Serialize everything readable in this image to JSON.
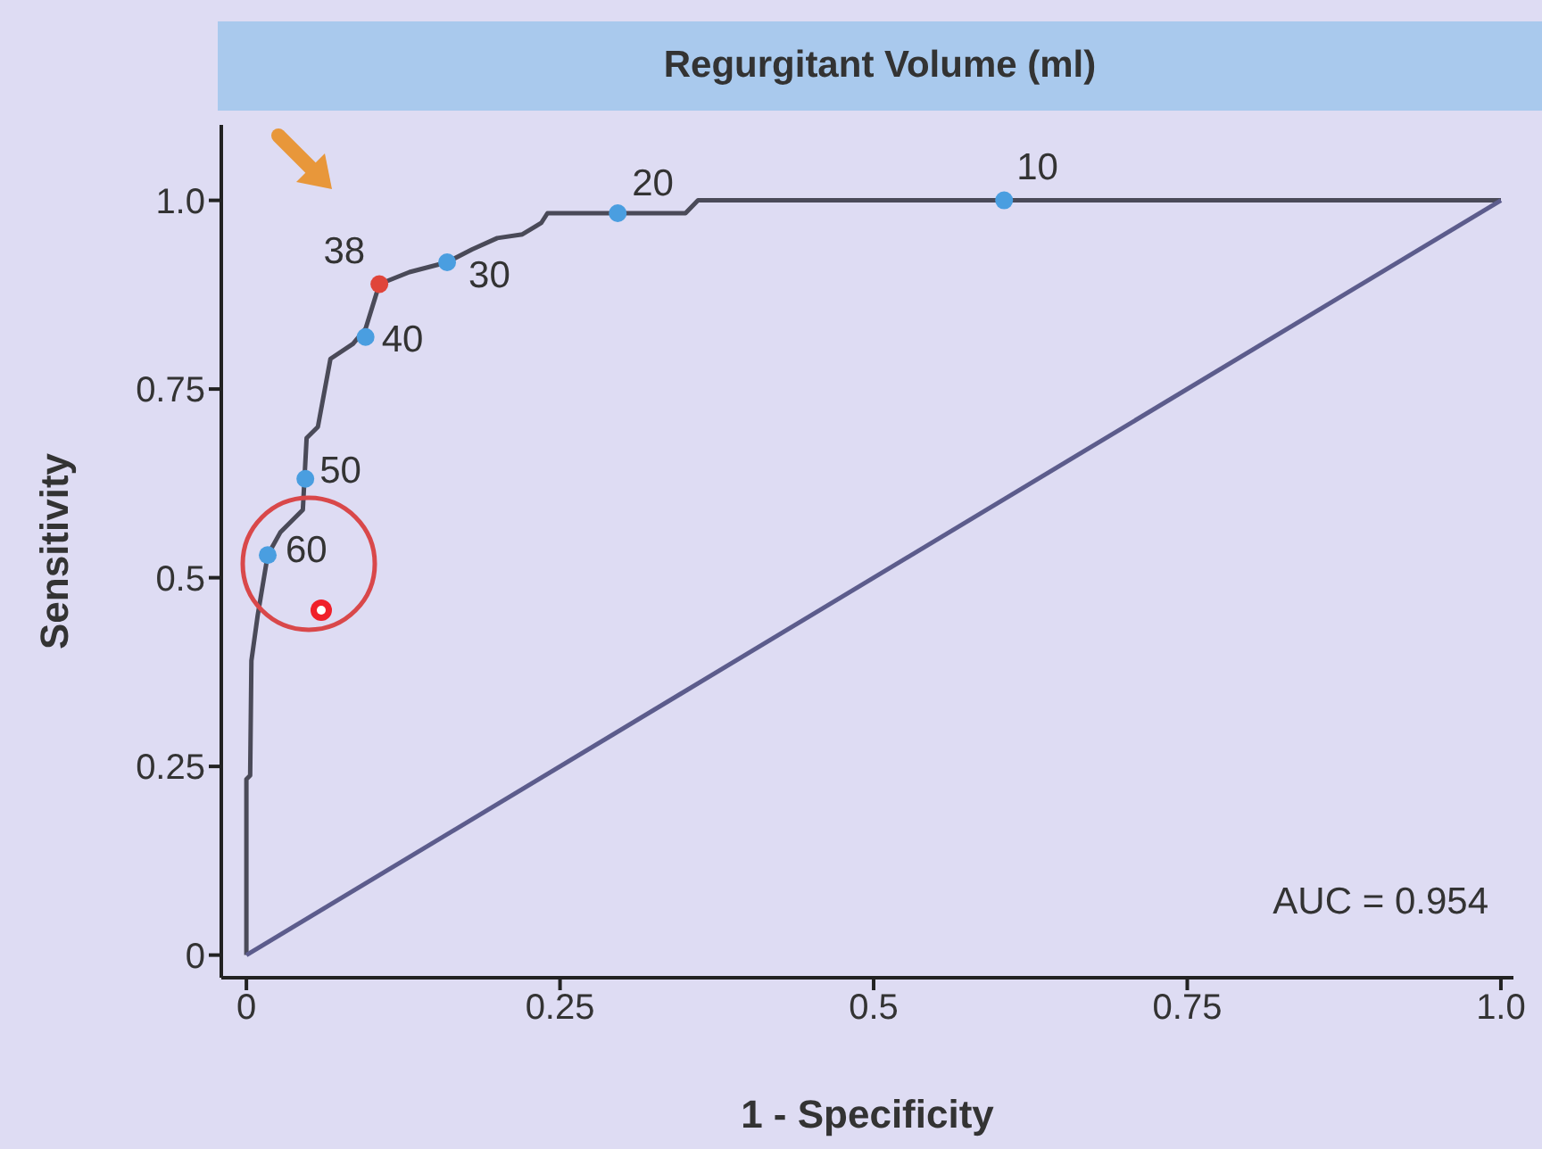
{
  "chart_data": {
    "type": "line",
    "title": "Regurgitant Volume (ml)",
    "xlabel": "1 - Specificity",
    "ylabel": "Sensitivity",
    "annotations": [
      "AUC = 0.954",
      {
        "text": "60",
        "x": 0.017,
        "y": 0.53
      },
      {
        "text": "50",
        "x": 0.047,
        "y": 0.631
      },
      {
        "text": "40",
        "x": 0.095,
        "y": 0.819
      },
      {
        "text": "38",
        "x": 0.106,
        "y": 0.889
      },
      {
        "text": "30",
        "x": 0.16,
        "y": 0.918
      },
      {
        "text": "20",
        "x": 0.296,
        "y": 0.983
      },
      {
        "text": "10",
        "x": 0.604,
        "y": 1.0
      }
    ],
    "xlim": [
      -0.02,
      1.01
    ],
    "ylim": [
      -0.03,
      1.1
    ],
    "xticks": [
      0,
      0.25,
      0.5,
      0.75,
      {
        "value": 1,
        "label": "1.0"
      }
    ],
    "yticks": [
      0,
      0.25,
      0.5,
      0.75,
      {
        "value": 1,
        "label": "1.0"
      }
    ],
    "grid": false,
    "legend": false,
    "line_style": "solid",
    "series": [
      {
        "color": "#4a4a58",
        "marker": "none",
        "x": [
          0,
          0,
          0.003,
          0.004,
          0.009,
          0.017,
          0.027,
          0.045,
          0.048,
          0.057,
          0.067,
          0.085,
          0.095,
          0.106,
          0.13,
          0.16,
          0.18,
          0.2,
          0.22,
          0.235,
          0.24,
          0.35,
          0.36,
          1.0
        ],
        "values": [
          0,
          0.233,
          0.238,
          0.39,
          0.45,
          0.53,
          0.56,
          0.59,
          0.685,
          0.7,
          0.79,
          0.81,
          0.83,
          0.889,
          0.905,
          0.918,
          0.935,
          0.95,
          0.955,
          0.97,
          0.983,
          0.983,
          1.0,
          1.0
        ]
      },
      {
        "color": "#5c5c8c",
        "marker": "none",
        "x": [
          0,
          1
        ],
        "values": [
          0,
          1
        ]
      },
      {
        "type": "scatter",
        "marker": "circle",
        "x": [
          0.017,
          0.047,
          0.095,
          0.106,
          0.16,
          0.296,
          0.604
        ],
        "values": [
          0.53,
          0.631,
          0.819,
          0.889,
          0.918,
          0.983,
          1.0
        ],
        "colors": [
          "#4a9ee0",
          "#4a9ee0",
          "#4a9ee0",
          "#e0453a",
          "#4a9ee0",
          "#4a9ee0",
          "#4a9ee0"
        ]
      }
    ]
  }
}
